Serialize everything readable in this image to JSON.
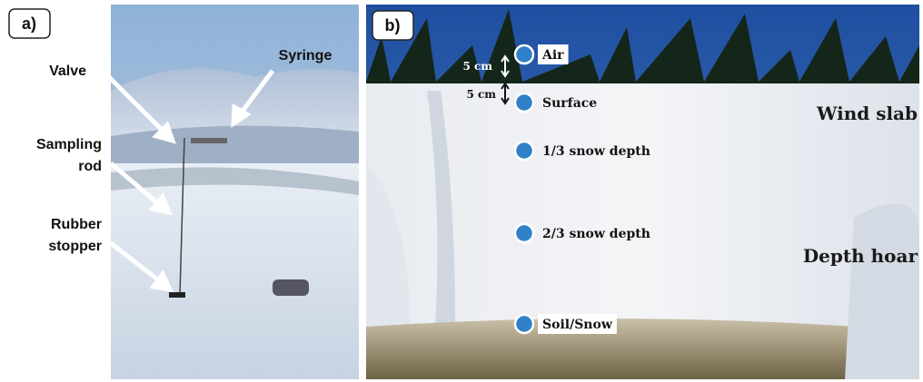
{
  "panels": [
    {
      "label": "a)",
      "annotations": [
        {
          "lines": [
            "Valve"
          ]
        },
        {
          "lines": [
            "Syringe"
          ]
        },
        {
          "lines": [
            "Sampling",
            "rod"
          ]
        },
        {
          "lines": [
            "Rubber",
            "stopper"
          ]
        }
      ]
    },
    {
      "label": "b)",
      "points": [
        {
          "label": "Air"
        },
        {
          "label": "Surface"
        },
        {
          "label": "1/3 snow depth"
        },
        {
          "label": "2/3 snow depth"
        },
        {
          "label": "Soil/Snow"
        }
      ],
      "scale_labels": [
        "5 cm",
        "5 cm"
      ],
      "layers": [
        "Wind slab",
        "Depth hoar"
      ]
    }
  ]
}
